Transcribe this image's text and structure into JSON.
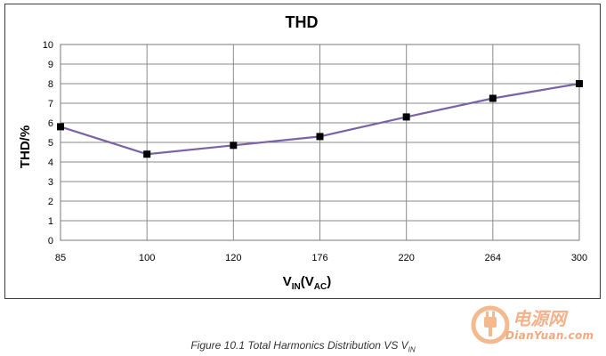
{
  "chart_data": {
    "type": "line",
    "title": "THD",
    "ylabel": "THD/%",
    "xlabel": {
      "main": "V",
      "sub1": "IN",
      "mid": "(V",
      "sub2": "AC",
      "end": ")"
    },
    "categories": [
      "85",
      "100",
      "120",
      "176",
      "220",
      "264",
      "300"
    ],
    "values": [
      5.8,
      4.4,
      4.85,
      5.3,
      6.3,
      7.25,
      8.0
    ],
    "ylim": [
      0,
      10
    ],
    "yticks": [
      "0",
      "1",
      "2",
      "3",
      "4",
      "5",
      "6",
      "7",
      "8",
      "9",
      "10"
    ],
    "grid": true,
    "line_color": "#7b61a6",
    "marker_color": "#000000"
  },
  "caption": {
    "text": "Figure 10.1 Total Harmonics Distribution VS V",
    "sub": "IN"
  },
  "watermark": {
    "cn": "电源网",
    "en": "DianYuan.com",
    "icon": "plug-icon"
  }
}
